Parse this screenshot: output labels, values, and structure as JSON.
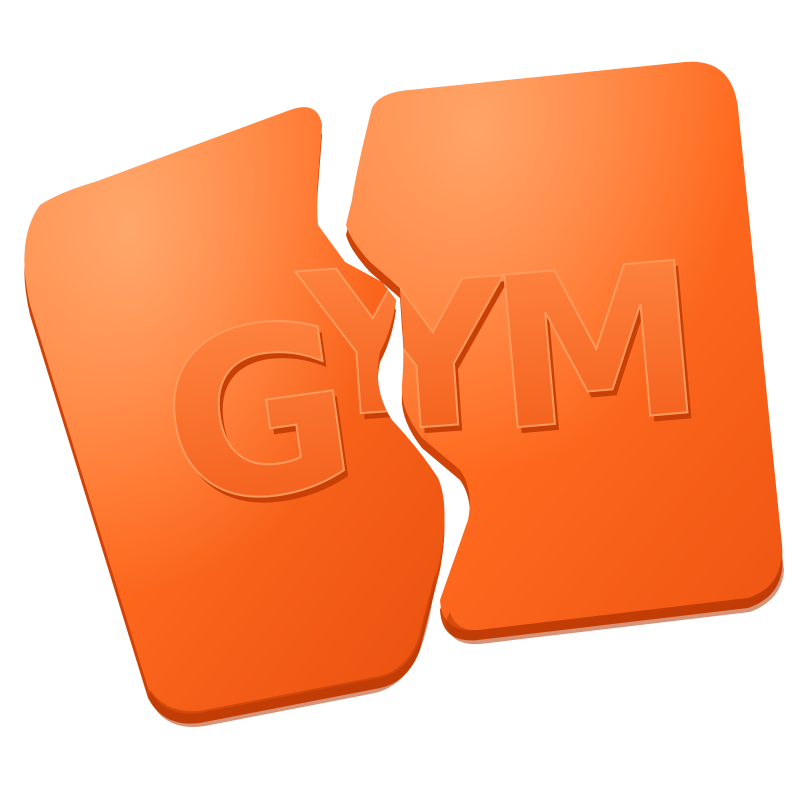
{
  "sign": {
    "word": "GYM",
    "letters": [
      "G",
      "Y",
      "M"
    ],
    "style": "broken-3d-clay-sign"
  },
  "colors": {
    "background": "#ffffff",
    "base": "#ff6a1f",
    "highlight": "#ffa060",
    "shadow": "#e2480c",
    "deep_shadow": "#c83a06",
    "letter_face": "#ff6f25"
  }
}
